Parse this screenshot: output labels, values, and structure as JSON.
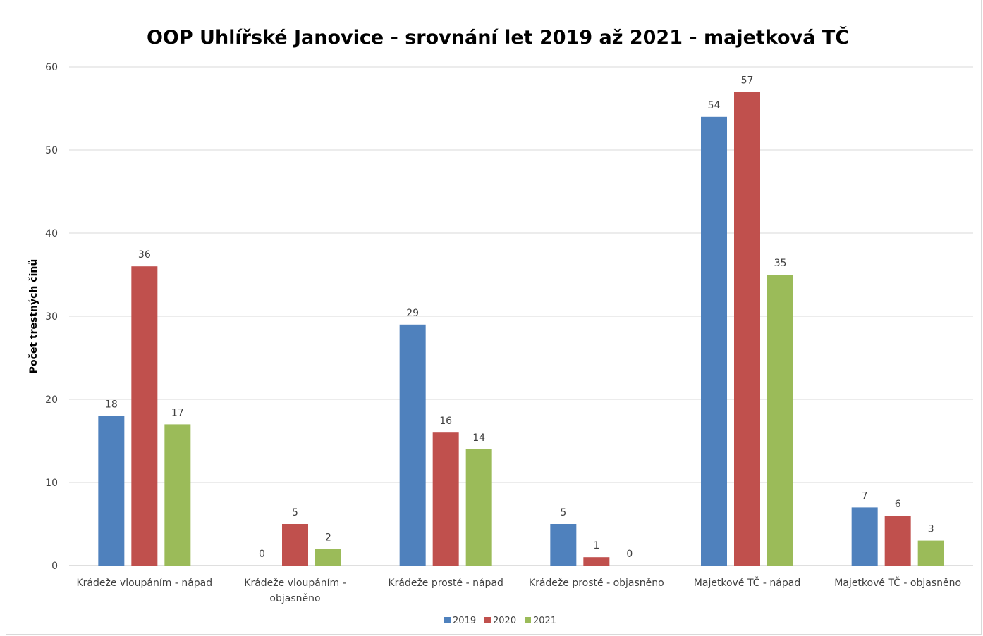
{
  "chart_data": {
    "type": "bar",
    "title": "OOP Uhlířské Janovice - srovnání let 2019 až 2021 - majetková TČ",
    "xlabel": "",
    "ylabel": "Počet trestných činů",
    "ylim": [
      0,
      60
    ],
    "yticks": [
      0,
      10,
      20,
      30,
      40,
      50,
      60
    ],
    "grid": true,
    "legend_position": "bottom",
    "data_labels": true,
    "categories": [
      [
        "Krádeže vloupáním - nápad"
      ],
      [
        "Krádeže vloupáním -",
        "objasněno"
      ],
      [
        "Krádeže prosté - nápad"
      ],
      [
        "Krádeže prosté - objasněno"
      ],
      [
        "Majetkové TČ - nápad"
      ],
      [
        "Majetkové TČ - objasněno"
      ]
    ],
    "series": [
      {
        "name": "2019",
        "color": "#4f81bd",
        "values": [
          18,
          0,
          29,
          5,
          54,
          7
        ]
      },
      {
        "name": "2020",
        "color": "#c0504d",
        "values": [
          36,
          5,
          16,
          1,
          57,
          6
        ]
      },
      {
        "name": "2021",
        "color": "#9bbb59",
        "values": [
          17,
          2,
          14,
          0,
          35,
          3
        ]
      }
    ],
    "gridline_color": "#d9d9d9",
    "axis_color": "#bfbfbf"
  }
}
